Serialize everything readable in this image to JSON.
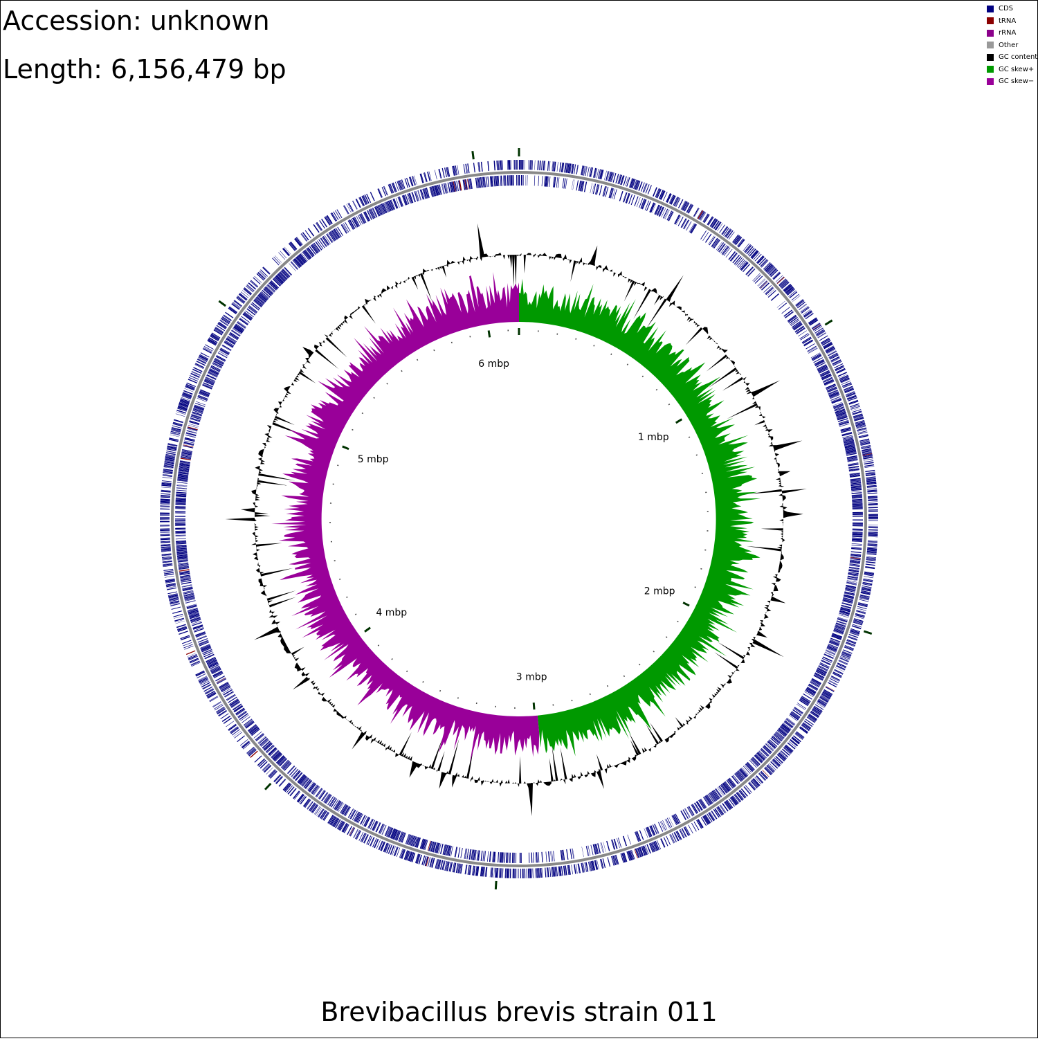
{
  "header": {
    "accession": "Accession: unknown",
    "length": "Length: 6,156,479 bp"
  },
  "title": "Brevibacillus brevis strain 011",
  "legend": [
    {
      "label": "CDS",
      "color": "#000080"
    },
    {
      "label": "tRNA",
      "color": "#8B0000"
    },
    {
      "label": "rRNA",
      "color": "#8B008B"
    },
    {
      "label": "Other",
      "color": "#999999"
    },
    {
      "label": "GC content",
      "color": "#000000"
    },
    {
      "label": "GC skew+",
      "color": "#009900"
    },
    {
      "label": "GC skew−",
      "color": "#990099"
    }
  ],
  "genome_map": {
    "length_bp": 6156479,
    "tick_labels": [
      "1 mbp",
      "2 mbp",
      "3 mbp",
      "4 mbp",
      "5 mbp",
      "6 mbp"
    ],
    "colors": {
      "cds": "#000080",
      "trna": "#8B0000",
      "backbone": "#888888",
      "gc_content": "#000000",
      "skew_pos": "#009900",
      "skew_neg": "#990099",
      "tick": "#003300"
    }
  }
}
